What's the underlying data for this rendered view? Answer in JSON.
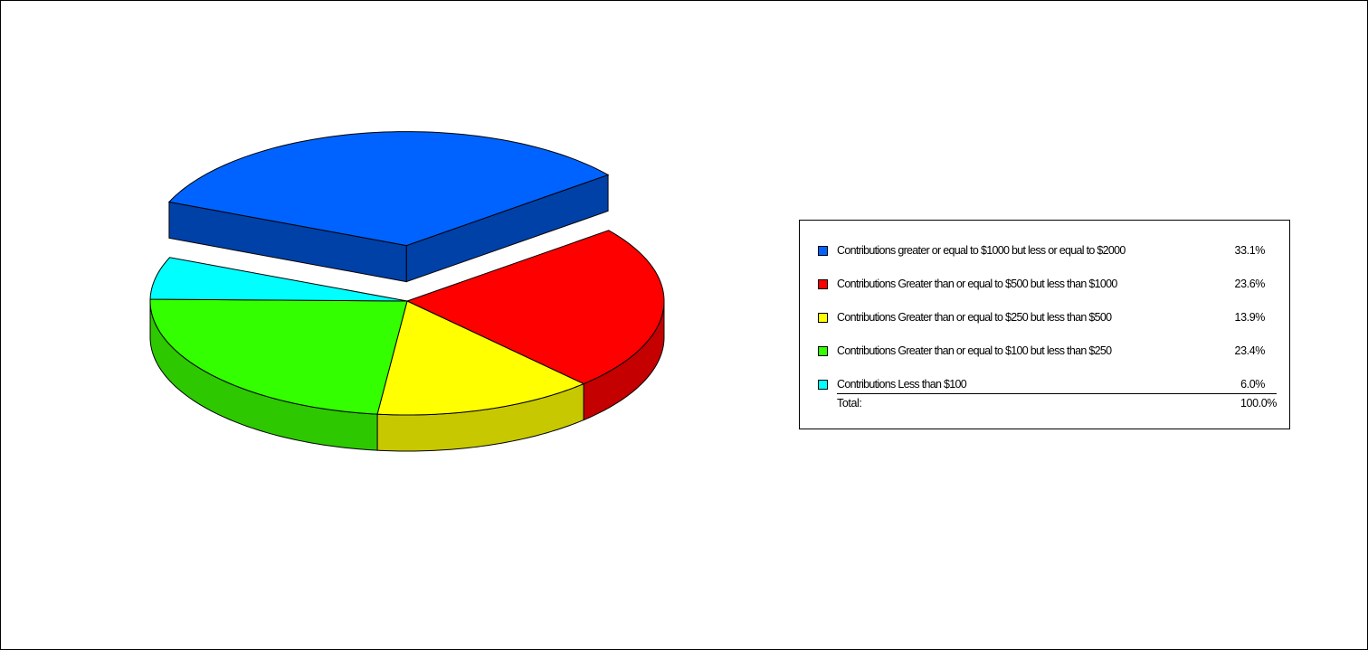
{
  "chart_data": {
    "type": "pie",
    "title": "",
    "style": "3d-exploded",
    "exploded_slice": 0,
    "legend_position": "right",
    "slices": [
      {
        "label": "Contributions greater or equal to $1000 but less or equal to $2000",
        "percent_text": "33.1%",
        "value": 33.1,
        "color": "#0063FF",
        "side_color": "#0041A8"
      },
      {
        "label": "Contributions Greater than or equal to $500 but less than $1000",
        "percent_text": "23.6%",
        "value": 23.6,
        "color": "#FF0000",
        "side_color": "#C40000"
      },
      {
        "label": "Contributions Greater than or equal to $250 but less than $500",
        "percent_text": "13.9%",
        "value": 13.9,
        "color": "#FFFF00",
        "side_color": "#C8C800"
      },
      {
        "label": "Contributions Greater than or equal to $100 but less than $250",
        "percent_text": "23.4%",
        "value": 23.4,
        "color": "#33FF00",
        "side_color": "#2DC800"
      },
      {
        "label": "Contributions Less than $100",
        "percent_text": "6.0%",
        "value": 6.0,
        "color": "#00FFFF",
        "side_color": "#00C8C8"
      }
    ],
    "total_label": "Total:",
    "total_text": "100.0%"
  }
}
